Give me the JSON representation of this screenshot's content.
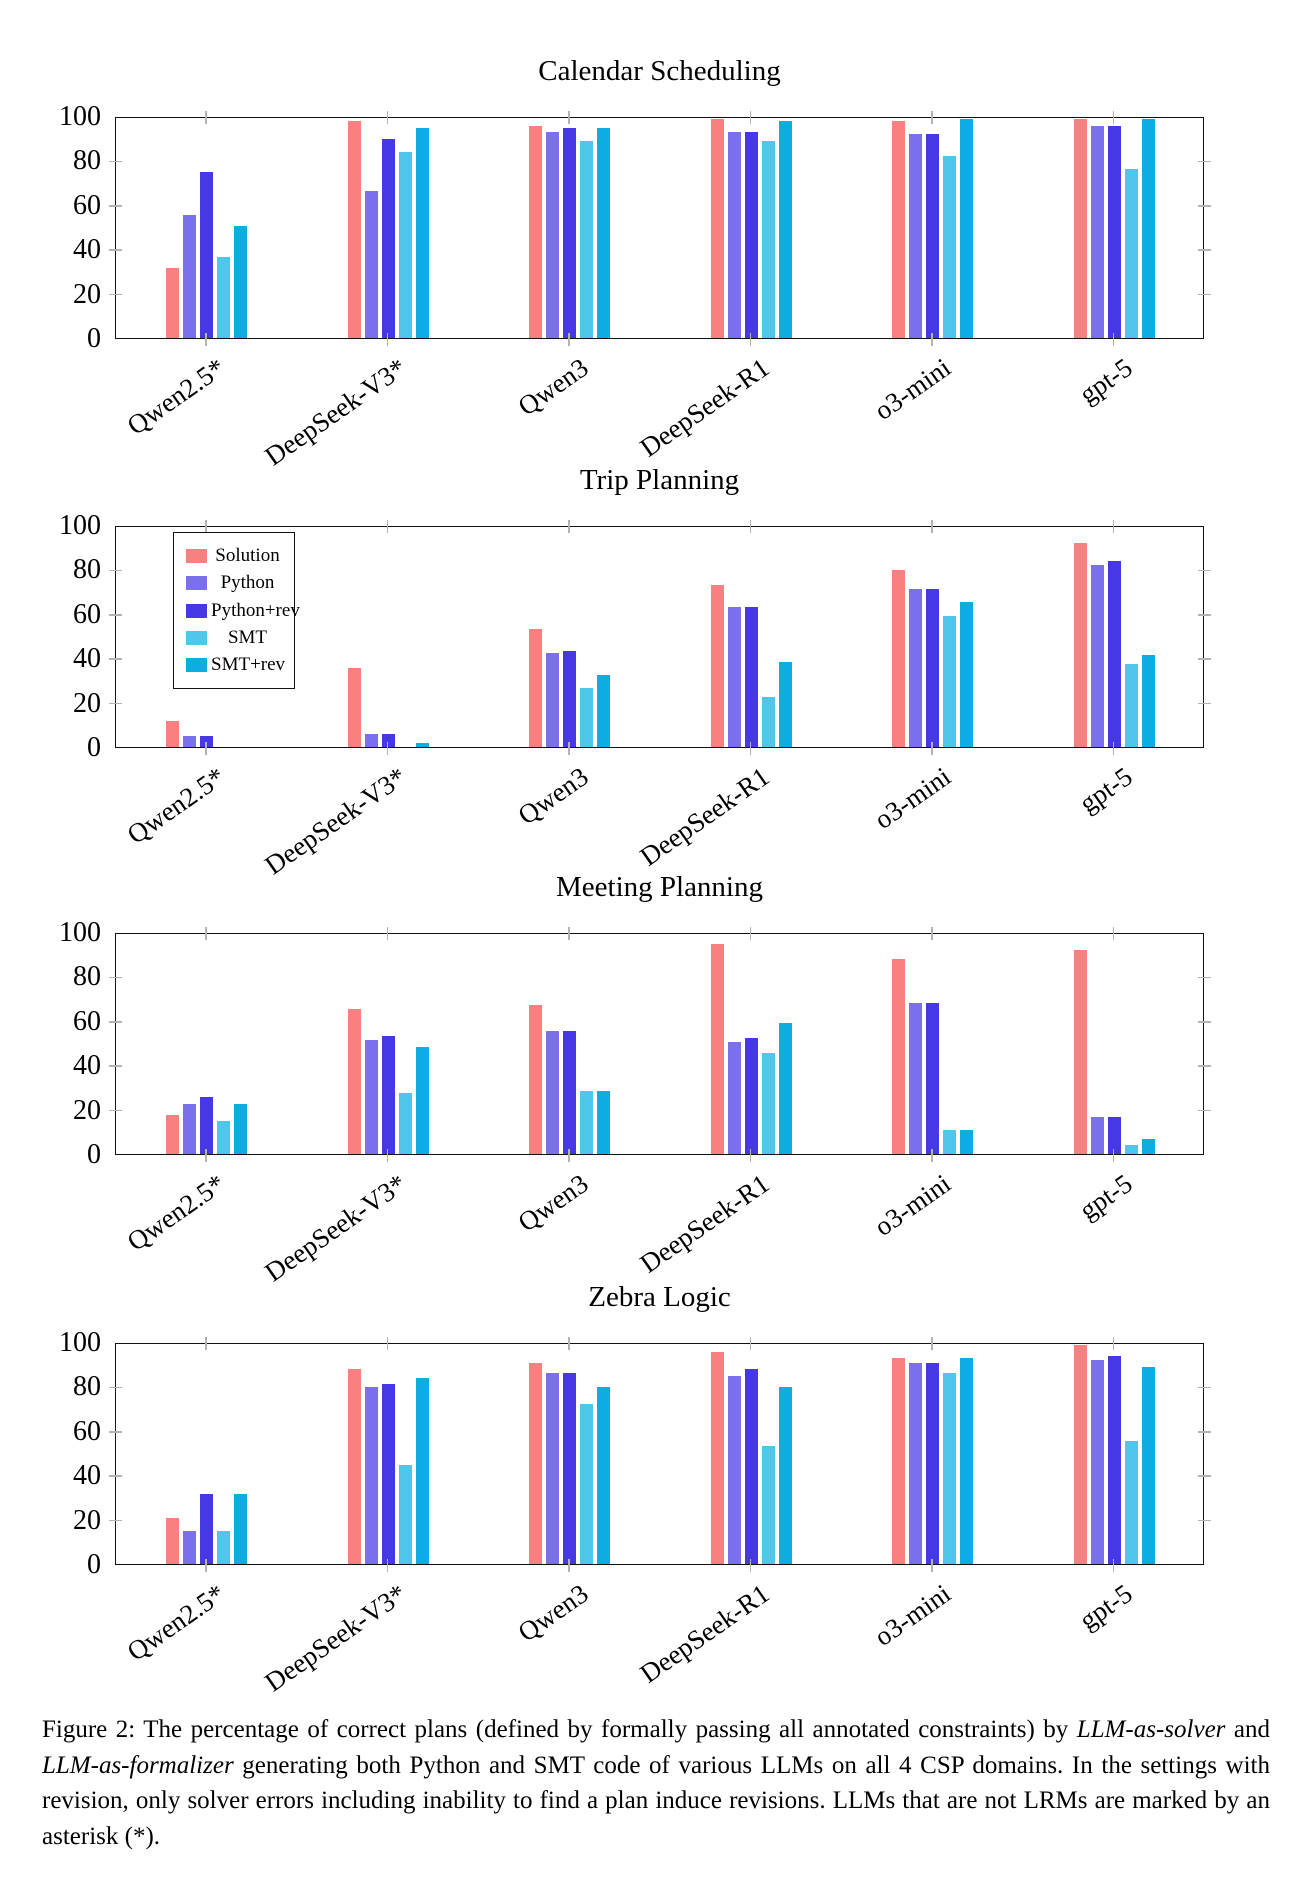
{
  "figure": {
    "caption_runs": [
      {
        "text": "Figure 2: The percentage of correct plans (defined by formally passing all annotated constraints) by ",
        "italic": false
      },
      {
        "text": "LLM-as-solver",
        "italic": true
      },
      {
        "text": " and ",
        "italic": false
      },
      {
        "text": "LLM-as-formalizer",
        "italic": true
      },
      {
        "text": " generating both Python and SMT code of various LLMs on all 4 CSP domains. In the settings with revision, only solver errors including inability to find a plan induce revisions. LLMs that are not LRMs are marked by an asterisk (*).",
        "italic": false
      }
    ]
  },
  "legend": {
    "position": "top-left inside second chart",
    "entries": [
      {
        "label": "Solution",
        "color": "#F98080"
      },
      {
        "label": "Python",
        "color": "#7A70EB"
      },
      {
        "label": "Python+rev",
        "color": "#4638E4"
      },
      {
        "label": "SMT",
        "color": "#4EC7EA"
      },
      {
        "label": "SMT+rev",
        "color": "#0DACE3"
      }
    ]
  },
  "colors": {
    "axis": "#111111",
    "tick": "#b3b3b3",
    "background": "#ffffff"
  },
  "chart_data": [
    {
      "type": "bar",
      "title": "Calendar Scheduling",
      "categories": [
        "Qwen2.5*",
        "DeepSeek-V3*",
        "Qwen3",
        "DeepSeek-R1",
        "o3-mini",
        "gpt-5"
      ],
      "series": [
        {
          "name": "Solution",
          "values": [
            32,
            99,
            97,
            100,
            99,
            100
          ]
        },
        {
          "name": "Python",
          "values": [
            56,
            67,
            94,
            94,
            93,
            97
          ]
        },
        {
          "name": "Python+rev",
          "values": [
            76,
            91,
            96,
            94,
            93,
            97
          ]
        },
        {
          "name": "SMT",
          "values": [
            37,
            85,
            90,
            90,
            83,
            77
          ]
        },
        {
          "name": "SMT+rev",
          "values": [
            51,
            96,
            96,
            99,
            100,
            100
          ]
        }
      ],
      "ylim": [
        0,
        100
      ],
      "yticks": [
        0,
        20,
        40,
        60,
        80,
        100
      ],
      "grid": false,
      "legend_visible": false
    },
    {
      "type": "bar",
      "title": "Trip Planning",
      "categories": [
        "Qwen2.5*",
        "DeepSeek-V3*",
        "Qwen3",
        "DeepSeek-R1",
        "o3-mini",
        "gpt-5"
      ],
      "series": [
        {
          "name": "Solution",
          "values": [
            12,
            36,
            54,
            74,
            81,
            93
          ]
        },
        {
          "name": "Python",
          "values": [
            5,
            6,
            43,
            64,
            72,
            83
          ]
        },
        {
          "name": "Python+rev",
          "values": [
            5,
            6,
            44,
            64,
            72,
            85
          ]
        },
        {
          "name": "SMT",
          "values": [
            0,
            0,
            27,
            23,
            60,
            38
          ]
        },
        {
          "name": "SMT+rev",
          "values": [
            0,
            2,
            33,
            39,
            66,
            42
          ]
        }
      ],
      "ylim": [
        0,
        100
      ],
      "yticks": [
        0,
        20,
        40,
        60,
        80,
        100
      ],
      "grid": false,
      "legend_visible": true
    },
    {
      "type": "bar",
      "title": "Meeting Planning",
      "categories": [
        "Qwen2.5*",
        "DeepSeek-V3*",
        "Qwen3",
        "DeepSeek-R1",
        "o3-mini",
        "gpt-5"
      ],
      "series": [
        {
          "name": "Solution",
          "values": [
            18,
            66,
            68,
            96,
            89,
            93
          ]
        },
        {
          "name": "Python",
          "values": [
            23,
            52,
            56,
            51,
            69,
            17
          ]
        },
        {
          "name": "Python+rev",
          "values": [
            26,
            54,
            56,
            53,
            69,
            17
          ]
        },
        {
          "name": "SMT",
          "values": [
            15,
            28,
            29,
            46,
            11,
            4
          ]
        },
        {
          "name": "SMT+rev",
          "values": [
            23,
            49,
            29,
            60,
            11,
            7
          ]
        }
      ],
      "ylim": [
        0,
        100
      ],
      "yticks": [
        0,
        20,
        40,
        60,
        80,
        100
      ],
      "grid": false,
      "legend_visible": false
    },
    {
      "type": "bar",
      "title": "Zebra Logic",
      "categories": [
        "Qwen2.5*",
        "DeepSeek-V3*",
        "Qwen3",
        "DeepSeek-R1",
        "o3-mini",
        "gpt-5"
      ],
      "series": [
        {
          "name": "Solution",
          "values": [
            21,
            89,
            92,
            97,
            94,
            100
          ]
        },
        {
          "name": "Python",
          "values": [
            15,
            81,
            87,
            86,
            92,
            93
          ]
        },
        {
          "name": "Python+rev",
          "values": [
            32,
            82,
            87,
            89,
            92,
            95
          ]
        },
        {
          "name": "SMT",
          "values": [
            15,
            45,
            73,
            54,
            87,
            56
          ]
        },
        {
          "name": "SMT+rev",
          "values": [
            32,
            85,
            81,
            81,
            94,
            90
          ]
        }
      ],
      "ylim": [
        0,
        100
      ],
      "yticks": [
        0,
        20,
        40,
        60,
        80,
        100
      ],
      "grid": false,
      "legend_visible": false
    }
  ]
}
